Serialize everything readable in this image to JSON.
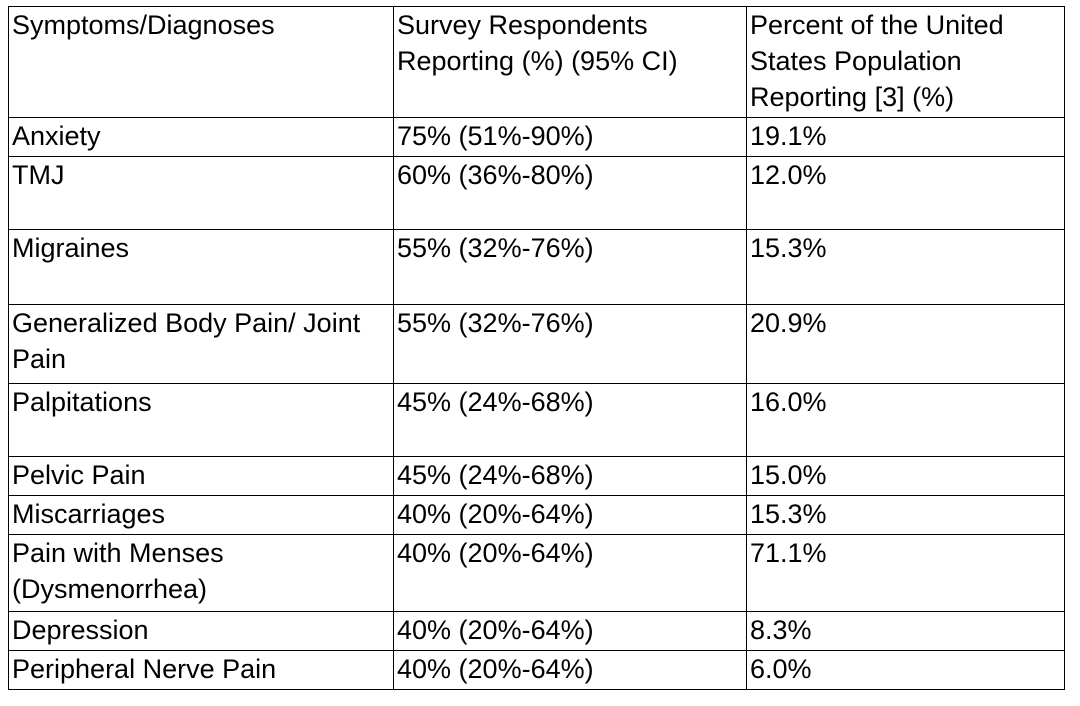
{
  "table": {
    "headers": [
      "Symptoms/Diagnoses",
      "Survey Respondents Reporting (%) (95% CI)",
      "Percent of the United States Population Reporting [3] (%)"
    ],
    "rows": [
      [
        "Anxiety",
        "75% (51%-90%)",
        "19.1%"
      ],
      [
        "TMJ",
        "60% (36%-80%)",
        "12.0%"
      ],
      [
        "Migraines",
        "55% (32%-76%)",
        "15.3%"
      ],
      [
        "Generalized Body Pain/ Joint Pain",
        "55% (32%-76%)",
        "20.9%"
      ],
      [
        "Palpitations",
        "45% (24%-68%)",
        "16.0%"
      ],
      [
        "Pelvic Pain",
        "45% (24%-68%)",
        "15.0%"
      ],
      [
        "Miscarriages",
        "40% (20%-64%)",
        "15.3%"
      ],
      [
        "Pain with Menses (Dysmenorrhea)",
        "40% (20%-64%)",
        "71.1%"
      ],
      [
        "Depression",
        "40% (20%-64%)",
        "8.3%"
      ],
      [
        "Peripheral Nerve Pain",
        "40% (20%-64%)",
        "6.0%"
      ]
    ]
  }
}
